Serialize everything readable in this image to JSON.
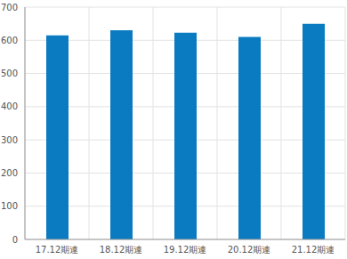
{
  "chart_data": {
    "type": "bar",
    "categories": [
      "17.12期連",
      "18.12期連",
      "19.12期連",
      "20.12期連",
      "21.12期連"
    ],
    "values": [
      615,
      630,
      623,
      610,
      650
    ],
    "color": "#0a7bc1",
    "ylim": [
      0,
      700
    ],
    "yticks": [
      0,
      100,
      200,
      300,
      400,
      500,
      600,
      700
    ],
    "grid": true
  }
}
